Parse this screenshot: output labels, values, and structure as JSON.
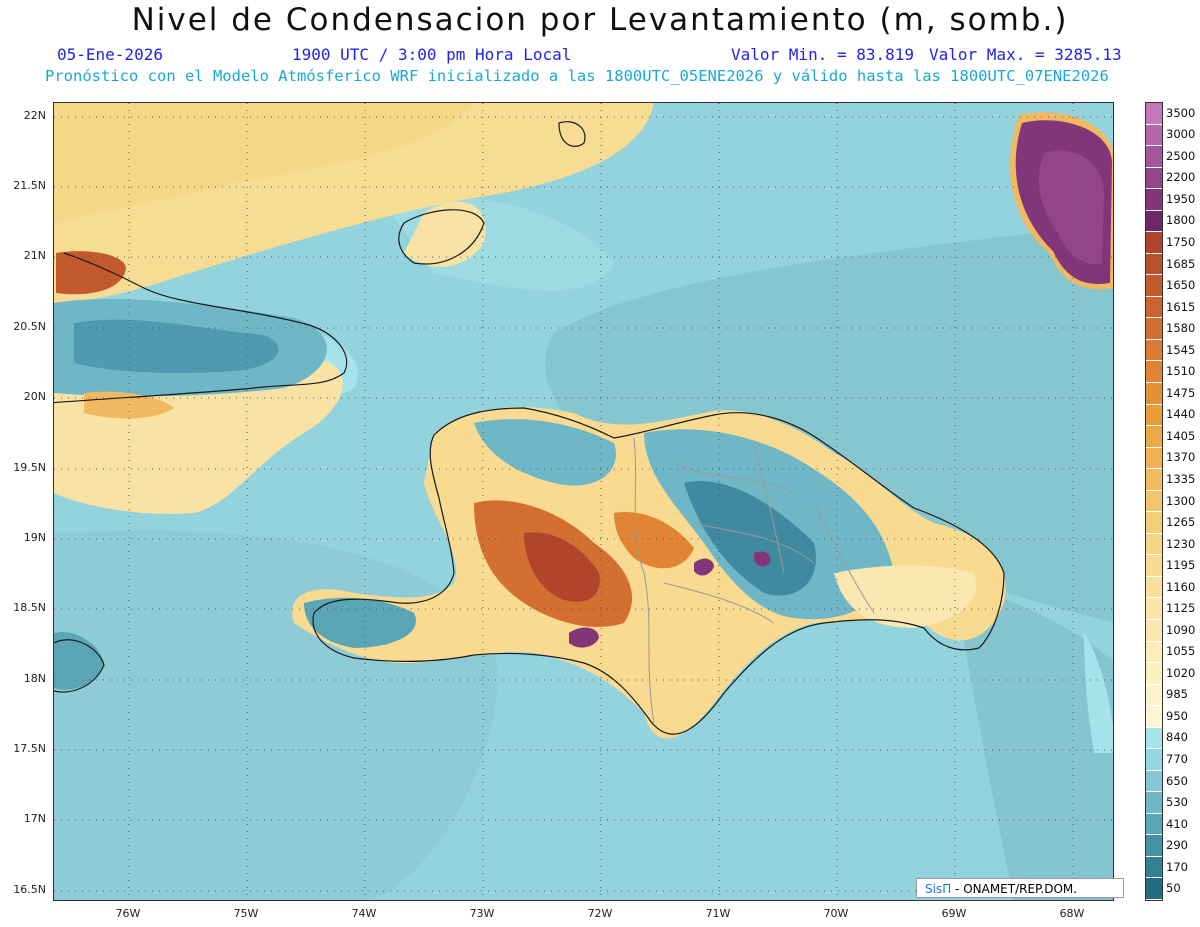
{
  "title": "Nivel de Condensacion por Levantamiento (m, somb.)",
  "date": "05-Ene-2026",
  "time": "1900 UTC / 3:00 pm Hora Local",
  "valmin_label": "Valor Min. = 83.819",
  "valmax_label": "Valor Max. = 3285.13",
  "model_line": "Pronóstico con el Modelo Atmósferico WRF inicializado a las 1800UTC_05ENE2026 y válido hasta las  1800UTC_07ENE2026",
  "credit": {
    "sis": "SisΠ",
    "rest": " - ONAMET/REP.DOM."
  },
  "lat_labels": [
    "22N",
    "21.5N",
    "21N",
    "20.5N",
    "20N",
    "19.5N",
    "19N",
    "18.5N",
    "18N",
    "17.5N",
    "17N",
    "16.5N"
  ],
  "lon_labels": [
    "76W",
    "75W",
    "74W",
    "73W",
    "72W",
    "71W",
    "70W",
    "69W",
    "68W"
  ],
  "colorbar": {
    "labels": [
      "3500",
      "3000",
      "2500",
      "2200",
      "1950",
      "1800",
      "1750",
      "1685",
      "1650",
      "1615",
      "1580",
      "1545",
      "1510",
      "1475",
      "1440",
      "1405",
      "1370",
      "1335",
      "1300",
      "1265",
      "1230",
      "1195",
      "1160",
      "1125",
      "1090",
      "1055",
      "1020",
      "985",
      "950",
      "840",
      "770",
      "650",
      "530",
      "410",
      "290",
      "170",
      "50"
    ],
    "colors": [
      "#c478b8",
      "#b466aa",
      "#a4559b",
      "#93458b",
      "#82367a",
      "#6f2667",
      "#b1442a",
      "#ba4f2c",
      "#c35a2e",
      "#cc6430",
      "#d36f31",
      "#da7a33",
      "#e08534",
      "#e59036",
      "#e99c3c",
      "#eca746",
      "#efb152",
      "#f1bb5e",
      "#f3c46b",
      "#f5cc78",
      "#f7d385",
      "#f8da91",
      "#f9df9c",
      "#fae4a7",
      "#fbe8b0",
      "#fcecba",
      "#fdf0c3",
      "#fdf2cb",
      "#fdf4d3",
      "#a6e4ea",
      "#95d7e0",
      "#83c8d4",
      "#6fb7c6",
      "#5aa5b6",
      "#4692a5",
      "#337f94",
      "#226b82"
    ]
  },
  "field_colors": {
    "ocean": "#92d3dd",
    "ocean_deep": "#82c3cd",
    "ocean_light": "#a6e2ea",
    "coast": "#1a1a1a",
    "borders": "#9a9a9a"
  }
}
